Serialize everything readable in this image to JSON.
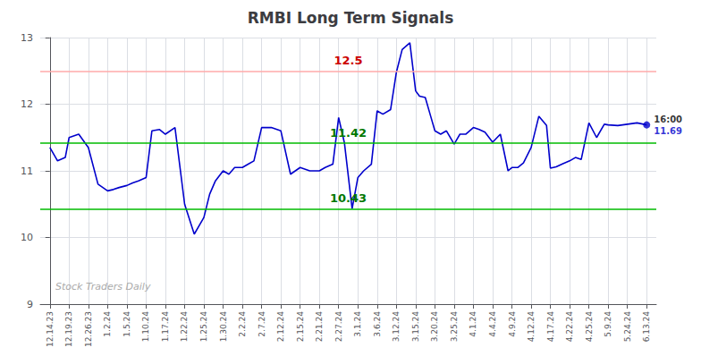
{
  "chart_data": {
    "type": "line",
    "title": "RMBI Long Term Signals",
    "x": [
      0.0,
      0.4,
      0.8,
      1.0,
      1.5,
      2.0,
      2.5,
      3.0,
      3.3,
      3.6,
      4.0,
      4.3,
      4.6,
      5.0,
      5.3,
      5.7,
      6.0,
      6.5,
      7.0,
      7.5,
      8.0,
      8.3,
      8.6,
      9.0,
      9.3,
      9.6,
      10.0,
      10.3,
      10.6,
      11.0,
      11.5,
      12.0,
      12.5,
      13.0,
      13.5,
      14.0,
      14.3,
      14.7,
      15.0,
      15.3,
      15.7,
      16.0,
      16.3,
      16.7,
      17.0,
      17.3,
      17.7,
      18.0,
      18.3,
      18.7,
      19.0,
      19.2,
      19.5,
      19.8,
      20.0,
      20.3,
      20.6,
      21.0,
      21.3,
      21.6,
      22.0,
      22.3,
      22.6,
      23.0,
      23.4,
      23.8,
      24.0,
      24.3,
      24.6,
      25.0,
      25.4,
      25.8,
      26.0,
      26.3,
      26.6,
      27.0,
      27.3,
      27.6,
      28.0,
      28.4,
      28.8,
      29.0,
      29.5,
      30.0,
      30.5,
      31.0
    ],
    "values": [
      11.35,
      11.15,
      11.2,
      11.5,
      11.55,
      11.35,
      10.8,
      10.7,
      10.72,
      10.75,
      10.78,
      10.82,
      10.85,
      10.9,
      11.6,
      11.62,
      11.55,
      11.65,
      10.5,
      10.05,
      10.3,
      10.65,
      10.85,
      11.0,
      10.95,
      11.05,
      11.05,
      11.1,
      11.15,
      11.65,
      11.65,
      11.6,
      10.95,
      11.05,
      11.0,
      11.0,
      11.05,
      11.1,
      11.8,
      11.42,
      10.43,
      10.9,
      11.0,
      11.1,
      11.9,
      11.85,
      11.92,
      12.48,
      12.82,
      12.92,
      12.2,
      12.12,
      12.1,
      11.8,
      11.6,
      11.55,
      11.6,
      11.4,
      11.55,
      11.55,
      11.65,
      11.62,
      11.58,
      11.43,
      11.55,
      11.0,
      11.05,
      11.05,
      11.12,
      11.35,
      11.82,
      11.68,
      11.04,
      11.06,
      11.1,
      11.15,
      11.2,
      11.17,
      11.72,
      11.5,
      11.7,
      11.69,
      11.68,
      11.7,
      11.72,
      11.69
    ],
    "color": "#0000cc",
    "xlim": [
      -0.5,
      31.5
    ],
    "xticks": [
      {
        "value": 0,
        "label": "12.14.23"
      },
      {
        "value": 1,
        "label": "12.19.23"
      },
      {
        "value": 2,
        "label": "12.26.23"
      },
      {
        "value": 3,
        "label": "1.2.24"
      },
      {
        "value": 4,
        "label": "1.5.24"
      },
      {
        "value": 5,
        "label": "1.10.24"
      },
      {
        "value": 6,
        "label": "1.17.24"
      },
      {
        "value": 7,
        "label": "1.22.24"
      },
      {
        "value": 8,
        "label": "1.25.24"
      },
      {
        "value": 9,
        "label": "1.30.24"
      },
      {
        "value": 10,
        "label": "2.2.24"
      },
      {
        "value": 11,
        "label": "2.7.24"
      },
      {
        "value": 12,
        "label": "2.12.24"
      },
      {
        "value": 13,
        "label": "2.15.24"
      },
      {
        "value": 14,
        "label": "2.21.24"
      },
      {
        "value": 15,
        "label": "2.27.24"
      },
      {
        "value": 16,
        "label": "3.1.24"
      },
      {
        "value": 17,
        "label": "3.6.24"
      },
      {
        "value": 18,
        "label": "3.12.24"
      },
      {
        "value": 19,
        "label": "3.15.24"
      },
      {
        "value": 20,
        "label": "3.20.24"
      },
      {
        "value": 21,
        "label": "3.25.24"
      },
      {
        "value": 22,
        "label": "4.1.24"
      },
      {
        "value": 23,
        "label": "4.4.24"
      },
      {
        "value": 24,
        "label": "4.9.24"
      },
      {
        "value": 25,
        "label": "4.12.24"
      },
      {
        "value": 26,
        "label": "4.17.24"
      },
      {
        "value": 27,
        "label": "4.22.24"
      },
      {
        "value": 28,
        "label": "4.25.24"
      },
      {
        "value": 29,
        "label": "5.9.24"
      },
      {
        "value": 30,
        "label": "5.24.24"
      },
      {
        "value": 31,
        "label": "6.13.24"
      }
    ],
    "ylim": [
      9,
      13
    ],
    "yticks": [
      9,
      10,
      11,
      12,
      13
    ],
    "grid": true,
    "reference_lines": [
      {
        "value": 12.5,
        "label": "12.5",
        "color": "#ffaaaa",
        "label_color": "#cc0000"
      },
      {
        "value": 11.42,
        "label": "11.42",
        "color": "#00bb00",
        "label_color": "#007700"
      },
      {
        "value": 10.43,
        "label": "10.43",
        "color": "#00bb00",
        "label_color": "#007700"
      }
    ],
    "last_point_annotations": [
      {
        "text": "16:00",
        "color": "#000000"
      },
      {
        "text": "11.69",
        "color": "#0000cc"
      }
    ],
    "watermark": {
      "text": "Stock Traders Daily",
      "color": "#aaaaaa"
    }
  }
}
